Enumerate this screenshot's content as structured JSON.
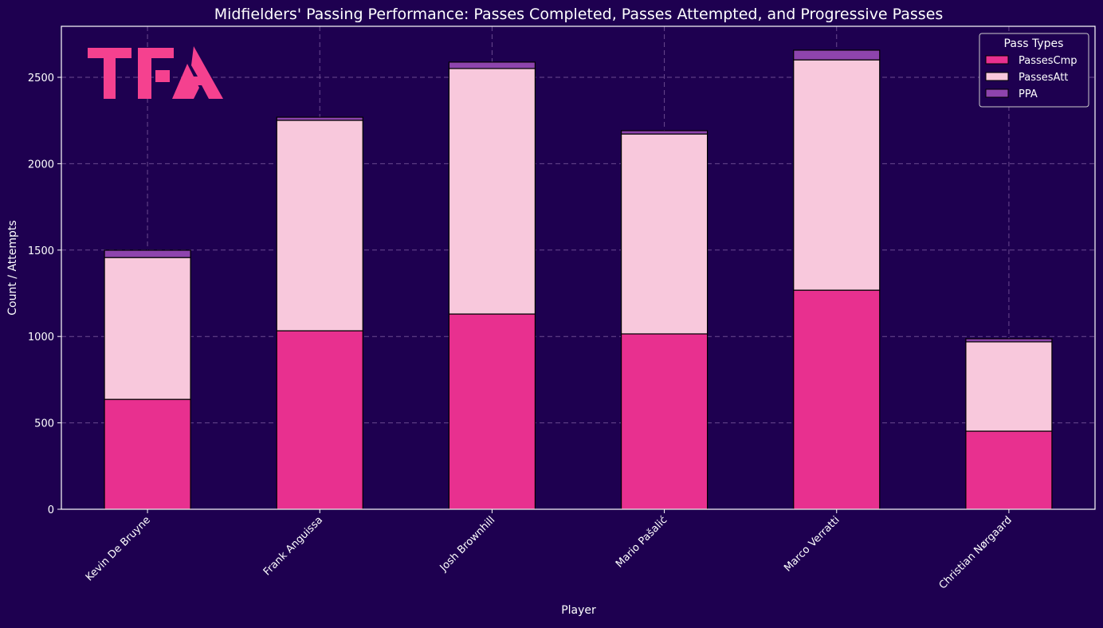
{
  "chart_data": {
    "type": "bar",
    "stacked": true,
    "title": "Midfielders' Passing Performance: Passes Completed, Passes Attempted, and Progressive Passes",
    "xlabel": "Player",
    "ylabel": "Count / Attempts",
    "ylim": [
      0,
      2790
    ],
    "yticks": [
      0,
      500,
      1000,
      1500,
      2000,
      2500
    ],
    "grid": true,
    "categories": [
      "Kevin De Bruyne",
      "Frank Anguissa",
      "Josh Brownhill",
      "Mario Pašalić",
      "Marco Verratti",
      "Christian Nørgaard"
    ],
    "series": [
      {
        "name": "PassesCmp",
        "color": "#e8308f",
        "values": [
          636,
          1033,
          1130,
          1015,
          1268,
          452
        ]
      },
      {
        "name": "PassesAtt",
        "color": "#f8c8dc",
        "values": [
          821,
          1218,
          1421,
          1157,
          1333,
          517
        ]
      },
      {
        "name": "PPA",
        "color": "#8e44ad",
        "values": [
          42,
          18,
          37,
          19,
          56,
          18
        ]
      }
    ],
    "legend": {
      "title": "Pass Types",
      "position": "top-right"
    }
  },
  "logo": {
    "text": "TFA",
    "color": "#f5418f"
  },
  "colors": {
    "background": "#1e0050",
    "grid": "#6a4a8f"
  }
}
